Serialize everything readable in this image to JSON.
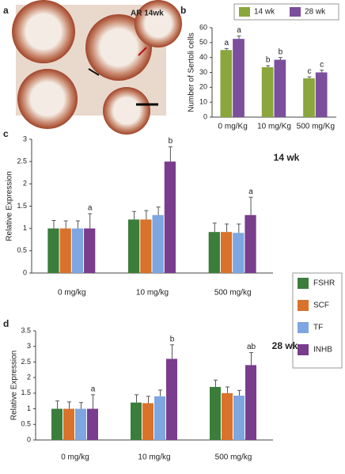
{
  "image": {
    "label": "a",
    "caption": "AR 14wk"
  },
  "chart_data": [
    {
      "type": "bar",
      "label": "b",
      "ylabel": "Number of Sertoli cells",
      "categories": [
        "0 mg/Kg",
        "10 mg/Kg",
        "500 mg/Kg"
      ],
      "ylim": [
        0,
        60
      ],
      "yticks": [
        0,
        10,
        20,
        30,
        40,
        50,
        60
      ],
      "legend": "top",
      "series": [
        {
          "name": "14 wk",
          "color": "#8aa63c",
          "values": [
            45,
            33.5,
            26
          ],
          "errors": [
            1,
            1,
            1
          ],
          "letters": [
            "a",
            "b",
            "c"
          ]
        },
        {
          "name": "28 wk",
          "color": "#7b4f9c",
          "values": [
            52.5,
            38.5,
            30
          ],
          "errors": [
            2,
            1.5,
            1.5
          ],
          "letters": [
            "a",
            "b",
            "c"
          ]
        }
      ]
    },
    {
      "type": "bar",
      "label": "c",
      "title": "14 wk",
      "ylabel": "Relative Expression",
      "categories": [
        "0 mg/kg",
        "10 mg/kg",
        "500 mg/kg"
      ],
      "ylim": [
        0,
        3
      ],
      "yticks": [
        0,
        0.5,
        1,
        1.5,
        2,
        2.5,
        3
      ],
      "legend": "right",
      "series": [
        {
          "name": "FSHR",
          "color": "#3b7d3b",
          "values": [
            1,
            1.2,
            0.92
          ],
          "errors": [
            0.18,
            0.18,
            0.2
          ]
        },
        {
          "name": "SCF",
          "color": "#d9722a",
          "values": [
            1,
            1.2,
            0.92
          ],
          "errors": [
            0.17,
            0.2,
            0.18
          ]
        },
        {
          "name": "TF",
          "color": "#7ea6e0",
          "values": [
            1,
            1.3,
            0.9
          ],
          "errors": [
            0.17,
            0.18,
            0.2
          ]
        },
        {
          "name": "INHB",
          "color": "#7a3c8c",
          "values": [
            1,
            2.5,
            1.3
          ],
          "errors": [
            0.33,
            0.33,
            0.4
          ],
          "letters": [
            "a",
            "b",
            "a"
          ]
        }
      ]
    },
    {
      "type": "bar",
      "label": "d",
      "title": "28 wk",
      "ylabel": "Relative Expression",
      "categories": [
        "0 mg/kg",
        "10 mg/kg",
        "500 mg/kg"
      ],
      "ylim": [
        0,
        3.5
      ],
      "yticks": [
        0,
        0.5,
        1,
        1.5,
        2,
        2.5,
        3,
        3.5
      ],
      "legend": "none",
      "series": [
        {
          "name": "FSHR",
          "color": "#3b7d3b",
          "values": [
            1,
            1.2,
            1.7
          ],
          "errors": [
            0.25,
            0.25,
            0.22
          ]
        },
        {
          "name": "SCF",
          "color": "#d9722a",
          "values": [
            1,
            1.18,
            1.5
          ],
          "errors": [
            0.22,
            0.22,
            0.2
          ]
        },
        {
          "name": "TF",
          "color": "#7ea6e0",
          "values": [
            1,
            1.4,
            1.42
          ],
          "errors": [
            0.2,
            0.2,
            0.17
          ]
        },
        {
          "name": "INHB",
          "color": "#7a3c8c",
          "values": [
            1,
            2.6,
            2.4
          ],
          "errors": [
            0.45,
            0.45,
            0.4
          ],
          "letters": [
            "a",
            "b",
            "ab"
          ]
        }
      ]
    }
  ]
}
